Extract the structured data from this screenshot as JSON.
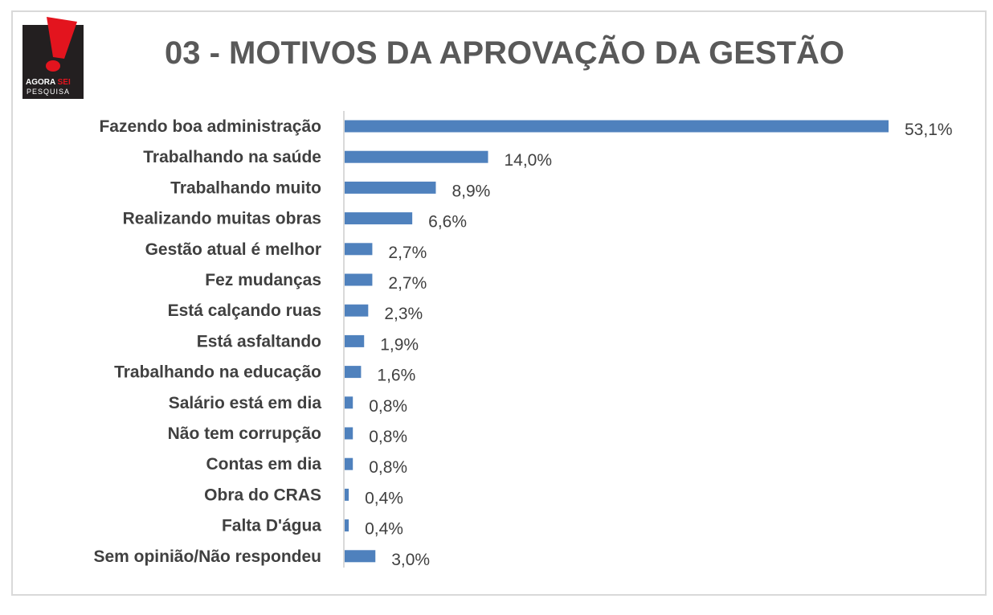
{
  "logo": {
    "text_top": "AGORA",
    "text_accent": "SEI",
    "text_bottom": "PESQUISA"
  },
  "colors": {
    "bar": "#4f81bd",
    "logo_red": "#e3141e",
    "logo_bg": "#231f20",
    "title": "#595959",
    "text": "#404040"
  },
  "chart_data": {
    "type": "bar",
    "orientation": "horizontal",
    "title": "03 - MOTIVOS DA APROVAÇÃO DA GESTÃO",
    "categories": [
      "Fazendo boa administração",
      "Trabalhando na saúde",
      "Trabalhando muito",
      "Realizando muitas obras",
      "Gestão atual é melhor",
      "Fez mudanças",
      "Está calçando ruas",
      "Está asfaltando",
      "Trabalhando na educação",
      "Salário está em dia",
      "Não tem corrupção",
      "Contas em dia",
      "Obra do CRAS",
      "Falta D'água",
      "Sem opinião/Não respondeu"
    ],
    "values": [
      53.1,
      14.0,
      8.9,
      6.6,
      2.7,
      2.7,
      2.3,
      1.9,
      1.6,
      0.8,
      0.8,
      0.8,
      0.4,
      0.4,
      3.0
    ],
    "value_labels": [
      "53,1%",
      "14,0%",
      "8,9%",
      "6,6%",
      "2,7%",
      "2,7%",
      "2,3%",
      "1,9%",
      "1,6%",
      "0,8%",
      "0,8%",
      "0,8%",
      "0,4%",
      "0,4%",
      "3,0%"
    ],
    "xlim": [
      0,
      53.1
    ],
    "grid": false,
    "legend": "none"
  }
}
